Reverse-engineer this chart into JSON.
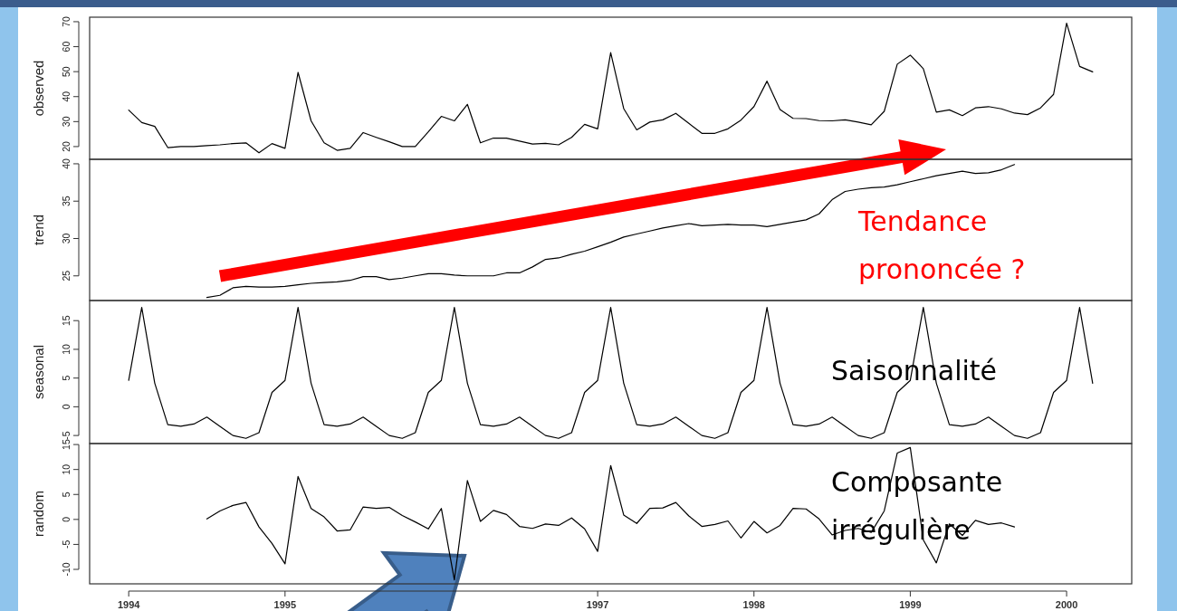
{
  "chart_data": [
    {
      "type": "line",
      "ylabel": "observed",
      "color": "#000000",
      "tick_labels": "y",
      "xlim": [
        "1993-10",
        "2000-06"
      ],
      "ylim": [
        14.9,
        71.8
      ],
      "yticks": [
        20,
        30,
        40,
        50,
        60,
        70
      ],
      "x": [
        "1994-01",
        "1994-02",
        "1994-03",
        "1994-04",
        "1994-05",
        "1994-06",
        "1994-07",
        "1994-08",
        "1994-09",
        "1994-10",
        "1994-11",
        "1994-12",
        "1995-01",
        "1995-02",
        "1995-03",
        "1995-04",
        "1995-05",
        "1995-06",
        "1995-07",
        "1995-08",
        "1995-09",
        "1995-10",
        "1995-11",
        "1995-12",
        "1996-01",
        "1996-02",
        "1996-03",
        "1996-04",
        "1996-05",
        "1996-06",
        "1996-07",
        "1996-08",
        "1996-09",
        "1996-10",
        "1996-11",
        "1996-12",
        "1997-01",
        "1997-02",
        "1997-03",
        "1997-04",
        "1997-05",
        "1997-06",
        "1997-07",
        "1997-08",
        "1997-09",
        "1997-10",
        "1997-11",
        "1997-12",
        "1998-01",
        "1998-02",
        "1998-03",
        "1998-04",
        "1998-05",
        "1998-06",
        "1998-07",
        "1998-08",
        "1998-09",
        "1998-10",
        "1998-11",
        "1998-12",
        "1999-01",
        "1999-02",
        "1999-03",
        "1999-04",
        "1999-05",
        "1999-06",
        "1999-07",
        "1999-08",
        "1999-09",
        "1999-10",
        "1999-11",
        "1999-12",
        "2000-01",
        "2000-02",
        "2000-03"
      ],
      "values": [
        34.6,
        29.6,
        28.1,
        19.6,
        20,
        20,
        20.4,
        20.7,
        21.2,
        21.5,
        17.5,
        21.2,
        19.3,
        49.7,
        30.3,
        21.5,
        18.5,
        19.3,
        25.6,
        23.7,
        21.9,
        20,
        20,
        25.9,
        32.1,
        30.3,
        36.9,
        21.5,
        23.4,
        23.4,
        22.2,
        21,
        21.3,
        20.7,
        23.7,
        28.9,
        27.1,
        57.6,
        35.2,
        26.7,
        29.8,
        30.7,
        33.3,
        29.3,
        25.3,
        25.3,
        27.1,
        30.6,
        36.0,
        46.2,
        34.8,
        31.3,
        31.2,
        30.4,
        30.3,
        30.7,
        29.8,
        28.7,
        34.1,
        53.0,
        56.6,
        51.2,
        33.8,
        34.7,
        32.4,
        35.5,
        36.0,
        35.1,
        33.4,
        32.8,
        35.5,
        40.9,
        69.4,
        52.1,
        49.9
      ]
    },
    {
      "type": "line",
      "ylabel": "trend",
      "color": "#000000",
      "tick_labels": "y",
      "xlim": [
        "1993-10",
        "2000-06"
      ],
      "ylim": [
        21.7,
        40.6
      ],
      "yticks": [
        25,
        30,
        35,
        40
      ],
      "annotations": [
        "Tendance prononcée ?"
      ],
      "x": [
        "1994-07",
        "1994-08",
        "1994-09",
        "1994-10",
        "1994-11",
        "1994-12",
        "1995-01",
        "1995-02",
        "1995-03",
        "1995-04",
        "1995-05",
        "1995-06",
        "1995-07",
        "1995-08",
        "1995-09",
        "1995-10",
        "1995-11",
        "1995-12",
        "1996-01",
        "1996-02",
        "1996-03",
        "1996-04",
        "1996-05",
        "1996-06",
        "1996-07",
        "1996-08",
        "1996-09",
        "1996-10",
        "1996-11",
        "1996-12",
        "1997-01",
        "1997-02",
        "1997-03",
        "1997-04",
        "1997-05",
        "1997-06",
        "1997-07",
        "1997-08",
        "1997-09",
        "1997-10",
        "1997-11",
        "1997-12",
        "1998-01",
        "1998-02",
        "1998-03",
        "1998-04",
        "1998-05",
        "1998-06",
        "1998-07",
        "1998-08",
        "1998-09",
        "1998-10",
        "1998-11",
        "1998-12",
        "1999-01",
        "1999-02",
        "1999-03",
        "1999-04",
        "1999-05",
        "1999-06",
        "1999-07",
        "1999-08",
        "1999-09"
      ],
      "values": [
        22.1,
        22.4,
        23.4,
        23.6,
        23.5,
        23.5,
        23.6,
        23.8,
        24.0,
        24.1,
        24.2,
        24.4,
        24.9,
        24.9,
        24.5,
        24.7,
        25.0,
        25.3,
        25.3,
        25.1,
        25.0,
        25.0,
        25.0,
        25.4,
        25.4,
        26.2,
        27.2,
        27.4,
        27.9,
        28.3,
        28.9,
        29.5,
        30.2,
        30.6,
        31.0,
        31.4,
        31.7,
        32.0,
        31.7,
        31.8,
        31.9,
        31.8,
        31.8,
        31.6,
        31.9,
        32.2,
        32.5,
        33.3,
        35.2,
        36.3,
        36.6,
        36.8,
        36.9,
        37.2,
        37.6,
        38.0,
        38.4,
        38.7,
        39.0,
        38.7,
        38.8,
        39.2,
        39.9
      ]
    },
    {
      "type": "line",
      "ylabel": "seasonal",
      "color": "#000000",
      "tick_labels": "y",
      "xlim": [
        "1993-10",
        "2000-06"
      ],
      "ylim": [
        -6.4,
        18.5
      ],
      "yticks": [
        -5,
        0,
        5,
        10,
        15
      ],
      "annotations": [
        "Saisonnalité"
      ],
      "x": [
        "1994-01",
        "1994-02",
        "1994-03",
        "1994-04",
        "1994-05",
        "1994-06",
        "1994-07",
        "1994-08",
        "1994-09",
        "1994-10",
        "1994-11",
        "1994-12",
        "1995-01",
        "1995-02",
        "1995-03",
        "1995-04",
        "1995-05",
        "1995-06",
        "1995-07",
        "1995-08",
        "1995-09",
        "1995-10",
        "1995-11",
        "1995-12",
        "1996-01",
        "1996-02",
        "1996-03",
        "1996-04",
        "1996-05",
        "1996-06",
        "1996-07",
        "1996-08",
        "1996-09",
        "1996-10",
        "1996-11",
        "1996-12",
        "1997-01",
        "1997-02",
        "1997-03",
        "1997-04",
        "1997-05",
        "1997-06",
        "1997-07",
        "1997-08",
        "1997-09",
        "1997-10",
        "1997-11",
        "1997-12",
        "1998-01",
        "1998-02",
        "1998-03",
        "1998-04",
        "1998-05",
        "1998-06",
        "1998-07",
        "1998-08",
        "1998-09",
        "1998-10",
        "1998-11",
        "1998-12",
        "1999-01",
        "1999-02",
        "1999-03",
        "1999-04",
        "1999-05",
        "1999-06",
        "1999-07",
        "1999-08",
        "1999-09",
        "1999-10",
        "1999-11",
        "1999-12",
        "2000-01",
        "2000-02",
        "2000-03"
      ],
      "values": [
        4.6,
        17.3,
        4.1,
        -3.1,
        -3.4,
        -3.0,
        -1.8,
        -3.4,
        -5.0,
        -5.5,
        -4.5,
        2.5,
        4.6,
        17.3,
        4.1,
        -3.1,
        -3.4,
        -3.0,
        -1.8,
        -3.4,
        -5.0,
        -5.5,
        -4.5,
        2.5,
        4.6,
        17.3,
        4.1,
        -3.1,
        -3.4,
        -3.0,
        -1.8,
        -3.4,
        -5.0,
        -5.5,
        -4.5,
        2.5,
        4.6,
        17.3,
        4.1,
        -3.1,
        -3.4,
        -3.0,
        -1.8,
        -3.4,
        -5.0,
        -5.5,
        -4.5,
        2.5,
        4.6,
        17.3,
        4.1,
        -3.1,
        -3.4,
        -3.0,
        -1.8,
        -3.4,
        -5.0,
        -5.5,
        -4.5,
        2.5,
        4.6,
        17.3,
        4.1,
        -3.1,
        -3.4,
        -3.0,
        -1.8,
        -3.4,
        -5.0,
        -5.5,
        -4.5,
        2.5,
        4.6,
        17.3,
        4.1
      ]
    },
    {
      "type": "line",
      "ylabel": "random",
      "color": "#000000",
      "xlim": [
        "1993-10",
        "2000-06"
      ],
      "xticks": [
        "1994",
        "1995",
        "1997",
        "1998",
        "1999",
        "2000"
      ],
      "ylim": [
        -12.9,
        15.2
      ],
      "yticks": [
        -10,
        -5,
        0,
        5,
        10,
        15
      ],
      "annotations": [
        "Composante irrégulière"
      ],
      "x": [
        "1994-07",
        "1994-08",
        "1994-09",
        "1994-10",
        "1994-11",
        "1994-12",
        "1995-01",
        "1995-02",
        "1995-03",
        "1995-04",
        "1995-05",
        "1995-06",
        "1995-07",
        "1995-08",
        "1995-09",
        "1995-10",
        "1995-11",
        "1995-12",
        "1996-01",
        "1996-02",
        "1996-03",
        "1996-04",
        "1996-05",
        "1996-06",
        "1996-07",
        "1996-08",
        "1996-09",
        "1996-10",
        "1996-11",
        "1996-12",
        "1997-01",
        "1997-02",
        "1997-03",
        "1997-04",
        "1997-05",
        "1997-06",
        "1997-07",
        "1997-08",
        "1997-09",
        "1997-10",
        "1997-11",
        "1997-12",
        "1998-01",
        "1998-02",
        "1998-03",
        "1998-04",
        "1998-05",
        "1998-06",
        "1998-07",
        "1998-08",
        "1998-09",
        "1998-10",
        "1998-11",
        "1998-12",
        "1999-01",
        "1999-02",
        "1999-03",
        "1999-04",
        "1999-05",
        "1999-06",
        "1999-07",
        "1999-08",
        "1999-09"
      ],
      "values": [
        0.1,
        1.7,
        2.8,
        3.4,
        -1.5,
        -4.8,
        -8.9,
        8.6,
        2.2,
        0.5,
        -2.3,
        -2.1,
        2.5,
        2.2,
        2.4,
        0.8,
        -0.5,
        -1.9,
        2.2,
        -12.1,
        7.8,
        -0.4,
        1.8,
        1.0,
        -1.4,
        -1.8,
        -0.9,
        -1.2,
        0.3,
        -1.9,
        -6.4,
        10.8,
        0.9,
        -0.8,
        2.2,
        2.3,
        3.4,
        0.7,
        -1.4,
        -1.0,
        -0.3,
        -3.7,
        -0.4,
        -2.7,
        -1.2,
        2.2,
        2.1,
        0.1,
        -3.1,
        -2.2,
        -1.8,
        -2.6,
        1.7,
        13.3,
        14.4,
        -4.1,
        -8.7,
        -0.9,
        -3.2,
        -0.2,
        -1.0,
        -0.7,
        -1.5
      ]
    }
  ]
}
